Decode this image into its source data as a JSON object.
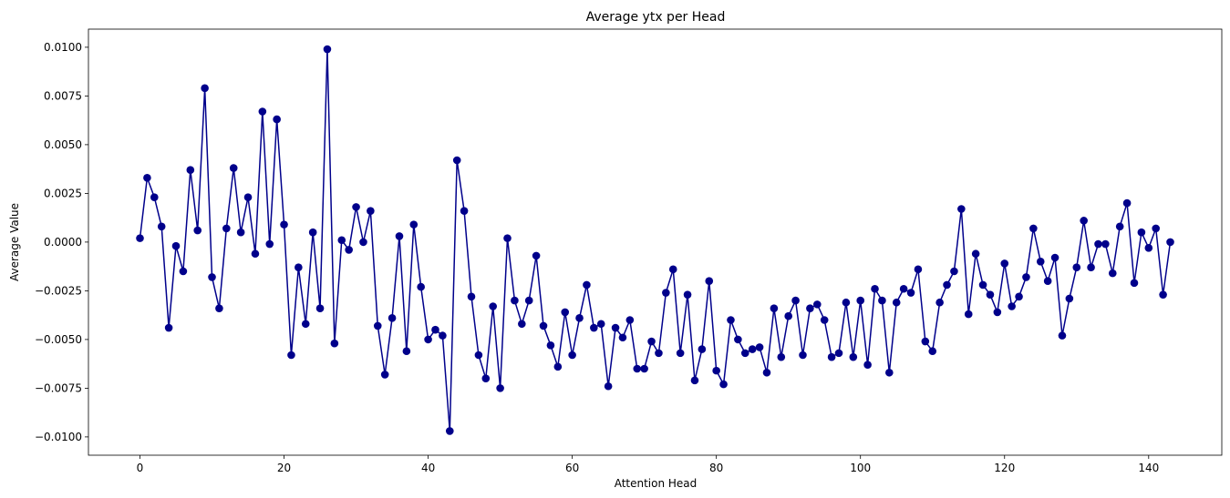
{
  "chart_data": {
    "type": "line",
    "title": "Average ytx per Head",
    "xlabel": "Attention Head",
    "ylabel": "Average Value",
    "xlim": [
      -7.15,
      150.15
    ],
    "ylim": [
      -0.01094,
      0.01093
    ],
    "xticks": [
      0,
      20,
      40,
      60,
      80,
      100,
      120,
      140
    ],
    "xtick_labels": [
      "0",
      "20",
      "40",
      "60",
      "80",
      "100",
      "120",
      "140"
    ],
    "yticks": [
      -0.01,
      -0.0075,
      -0.005,
      -0.0025,
      0.0,
      0.0025,
      0.005,
      0.0075,
      0.01
    ],
    "ytick_labels": [
      "−0.0100",
      "−0.0075",
      "−0.0050",
      "−0.0025",
      "0.0000",
      "0.0025",
      "0.0050",
      "0.0075",
      "0.0100"
    ],
    "grid": false,
    "series": [
      {
        "color": "#00008b",
        "marker": "circle",
        "x": [
          0,
          1,
          2,
          3,
          4,
          5,
          6,
          7,
          8,
          9,
          10,
          11,
          12,
          13,
          14,
          15,
          16,
          17,
          18,
          19,
          20,
          21,
          22,
          23,
          24,
          25,
          26,
          27,
          28,
          29,
          30,
          31,
          32,
          33,
          34,
          35,
          36,
          37,
          38,
          39,
          40,
          41,
          42,
          43,
          44,
          45,
          46,
          47,
          48,
          49,
          50,
          51,
          52,
          53,
          54,
          55,
          56,
          57,
          58,
          59,
          60,
          61,
          62,
          63,
          64,
          65,
          66,
          67,
          68,
          69,
          70,
          71,
          72,
          73,
          74,
          75,
          76,
          77,
          78,
          79,
          80,
          81,
          82,
          83,
          84,
          85,
          86,
          87,
          88,
          89,
          90,
          91,
          92,
          93,
          94,
          95,
          96,
          97,
          98,
          99,
          100,
          101,
          102,
          103,
          104,
          105,
          106,
          107,
          108,
          109,
          110,
          111,
          112,
          113,
          114,
          115,
          116,
          117,
          118,
          119,
          120,
          121,
          122,
          123,
          124,
          125,
          126,
          127,
          128,
          129,
          130,
          131,
          132,
          133,
          134,
          135,
          136,
          137,
          138,
          139,
          140,
          141,
          142,
          143
        ],
        "values": [
          0.0002,
          0.0033,
          0.0023,
          0.0008,
          -0.0044,
          -0.0002,
          -0.0015,
          0.0037,
          0.0006,
          0.0079,
          -0.0018,
          -0.0034,
          0.0007,
          0.0038,
          0.0005,
          0.0023,
          -0.0006,
          0.0067,
          -0.0001,
          0.0063,
          0.0009,
          -0.0058,
          -0.0013,
          -0.0042,
          0.0005,
          -0.0034,
          0.0099,
          -0.0052,
          0.0001,
          -0.0004,
          0.0018,
          0.0,
          0.0016,
          -0.0043,
          -0.0068,
          -0.0039,
          0.0003,
          -0.0056,
          0.0009,
          -0.0023,
          -0.005,
          -0.0045,
          -0.0048,
          -0.0097,
          0.0042,
          0.0016,
          -0.0028,
          -0.0058,
          -0.007,
          -0.0033,
          -0.0075,
          0.0002,
          -0.003,
          -0.0042,
          -0.003,
          -0.0007,
          -0.0043,
          -0.0053,
          -0.0064,
          -0.0036,
          -0.0058,
          -0.0039,
          -0.0022,
          -0.0044,
          -0.0042,
          -0.0074,
          -0.0044,
          -0.0049,
          -0.004,
          -0.0065,
          -0.0065,
          -0.0051,
          -0.0057,
          -0.0026,
          -0.0014,
          -0.0057,
          -0.0027,
          -0.0071,
          -0.0055,
          -0.002,
          -0.0066,
          -0.0073,
          -0.004,
          -0.005,
          -0.0057,
          -0.0055,
          -0.0054,
          -0.0067,
          -0.0034,
          -0.0059,
          -0.0038,
          -0.003,
          -0.0058,
          -0.0034,
          -0.0032,
          -0.004,
          -0.0059,
          -0.0057,
          -0.0031,
          -0.0059,
          -0.003,
          -0.0063,
          -0.0024,
          -0.003,
          -0.0067,
          -0.0031,
          -0.0024,
          -0.0026,
          -0.0014,
          -0.0051,
          -0.0056,
          -0.0031,
          -0.0022,
          -0.0015,
          0.0017,
          -0.0037,
          -0.0006,
          -0.0022,
          -0.0027,
          -0.0036,
          -0.0011,
          -0.0033,
          -0.0028,
          -0.0018,
          0.0007,
          -0.001,
          -0.002,
          -0.0008,
          -0.0048,
          -0.0029,
          -0.0013,
          0.0011,
          -0.0013,
          -0.0001,
          -0.0001,
          -0.0016,
          0.0008,
          0.002,
          -0.0021,
          0.0005,
          -0.0003,
          0.0007,
          -0.0027,
          0.0
        ]
      }
    ]
  }
}
